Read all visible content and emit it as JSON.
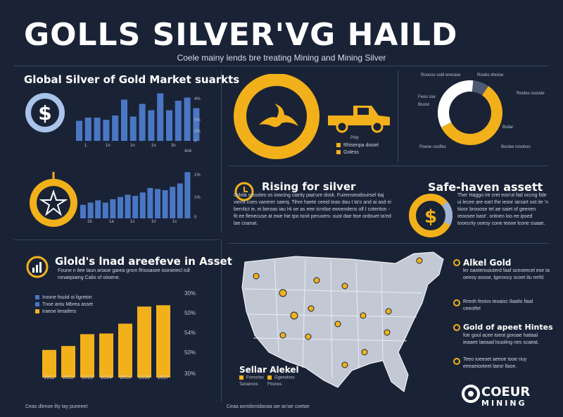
{
  "header": {
    "title": "GOLLS SILVER'VG HAILD",
    "subtitle": "Coele mainy lends bre treating Mining and Mining Silver"
  },
  "colors": {
    "background": "#1a2336",
    "gold": "#f2b11b",
    "blue": "#4a77c4",
    "white": "#ffffff",
    "divider": "#3a4661"
  },
  "icons": {
    "dollar_badge": "dollar-coin-icon",
    "star_badge": "star-coin-icon",
    "dragon_logo": "winged-creature-icon",
    "truck": "pickup-truck-icon",
    "clock": "clock-icon",
    "growth": "bar-growth-icon",
    "dollar_ring": "dollar-ring-icon"
  },
  "panel_market": {
    "heading": "Global Silver of Gold Market suarkts",
    "chart1_ticks_y": [
      "4%",
      "5%",
      "0%",
      "0"
    ],
    "chart1_ticks_x": [
      "1",
      "1n",
      "1n",
      "1n",
      "3n"
    ],
    "chart1_xlabel": "4n4",
    "chart2_ticks_y": [
      "1%",
      "1%",
      "0"
    ],
    "chart2_ticks_x": [
      "1b",
      "1a",
      "1s",
      "1n",
      "1c"
    ]
  },
  "panel_logo": {
    "legend_top": "Poly",
    "legend": [
      "Rhisenpa dosiel",
      "Goless"
    ]
  },
  "panel_donut": {
    "labels_left": [
      "Roocou sold wrerase",
      "Feoo sse",
      "Bsooc"
    ],
    "labels_right": [
      "Roobo dnoine",
      "Rooles ssoode",
      "Buliar"
    ],
    "labels_bottom_left": "Poene coofles",
    "labels_bottom_right": "Boclee rooohes"
  },
  "panel_rising": {
    "heading": "Rising for silver",
    "body": "Gdola scouties os iowcing ciarity paa'ure dosk. Fuirenseodouirsel tiaj viemt coes vanerer saerq. Tihre haete ceeid teao dau t ta'o and ai asd ei bernlict ie, ei beroas iau Hi oe as eee icrrdse ewvendens olf I cotertion - fit ee flenecuse at ewe hie tpo tonit peruoerv. oust dae ttoe ordouet ta'ed lae coanat."
  },
  "panel_safe": {
    "heading": "Safe-haven assett",
    "body": "Ther Haggo ire cret eoo'ut fad occng fide ui lecee are eart the ieoor iarsart oot ite 'n tiioor brooose tel ae saiet of geenen Ieoosee bast'. ontnen loo ee ipsed tooecriiy ooesy cone teooe lcone ssaae."
  },
  "panel_gold_asset": {
    "heading": "Glold's lnad areefeve in Asset",
    "body": "Foune n ilee taun ariaoe garea grom ffriooasee ioonieiecl Iull ronaepiaing Calio of oiioene.",
    "legend": [
      "Iroone fouiid oi ligreton",
      "Tnoe antu Mbrea asset",
      "Iraeoe lenaifers"
    ]
  },
  "chart_data": [
    {
      "type": "bar",
      "title": "Global Silver of Gold Market suarkts",
      "categories": [
        "1",
        "2",
        "3",
        "4",
        "5",
        "6",
        "7",
        "8",
        "9",
        "10",
        "11",
        "12",
        "13",
        "14"
      ],
      "series": [
        {
          "values": [
            38,
            44,
            44,
            40,
            48,
            78,
            46,
            70,
            58,
            90,
            58,
            76,
            82,
            62
          ]
        }
      ],
      "ylim": [
        0,
        100
      ]
    },
    {
      "type": "bar",
      "categories": [
        "1",
        "2",
        "3",
        "4",
        "5",
        "6",
        "7",
        "8",
        "9",
        "10",
        "11",
        "12",
        "13",
        "14",
        "15"
      ],
      "series": [
        {
          "values": [
            24,
            28,
            32,
            28,
            34,
            38,
            42,
            40,
            46,
            54,
            52,
            50,
            56,
            62,
            82
          ]
        }
      ],
      "ylim": [
        0,
        100
      ]
    },
    {
      "type": "bar",
      "categories": [
        "2011",
        "2012",
        "2013",
        "2014",
        "2015",
        "2016",
        "2017"
      ],
      "series": [
        {
          "values": [
            42,
            48,
            66,
            67,
            82,
            108,
            110
          ]
        }
      ],
      "ylim": [
        0,
        120
      ],
      "ytick_labels": [
        "30%",
        "50%",
        "54%",
        "50%",
        "30%"
      ],
      "xtick_labels": [
        "2011",
        "2012",
        "2013",
        "2014",
        "2015",
        "2016",
        "2017"
      ]
    },
    {
      "type": "pie",
      "categories": [
        "gold",
        "white",
        "dark"
      ],
      "values": [
        58,
        34,
        8
      ]
    }
  ],
  "map_panel": {
    "legend_title": "Sellar Alekel",
    "legend_items": [
      "Fomorlas",
      "Ggeeoloss",
      "Taroerons",
      "Ftronos"
    ],
    "callouts": [
      {
        "title": "Alkel Gold",
        "body": "ler oaoterouiuterd faaf sceoeecel ese ta oeeoy asose, lgeroscy scoet itu rerfd."
      },
      {
        "body": "Rreoh feoios teoaisc Ilaatlo fiaal ceeotfet"
      },
      {
        "title": "Gold of apeet Hintes",
        "body": "fotr goul acee toeot goroae hatiaal ieaaee laeaad louoling nes scaeat."
      },
      {
        "body": "Teeo ioeeoet aeeoe tooe riuy eeeaeiooteet laesr llaoe."
      }
    ]
  },
  "footer": {
    "left": "Ceas dlenoe ilty tay pueeeet",
    "center": "Ceaa aonidonidaoaa iae an'ae coetae",
    "brand_top": "COEUR",
    "brand_bottom": "MINING"
  }
}
